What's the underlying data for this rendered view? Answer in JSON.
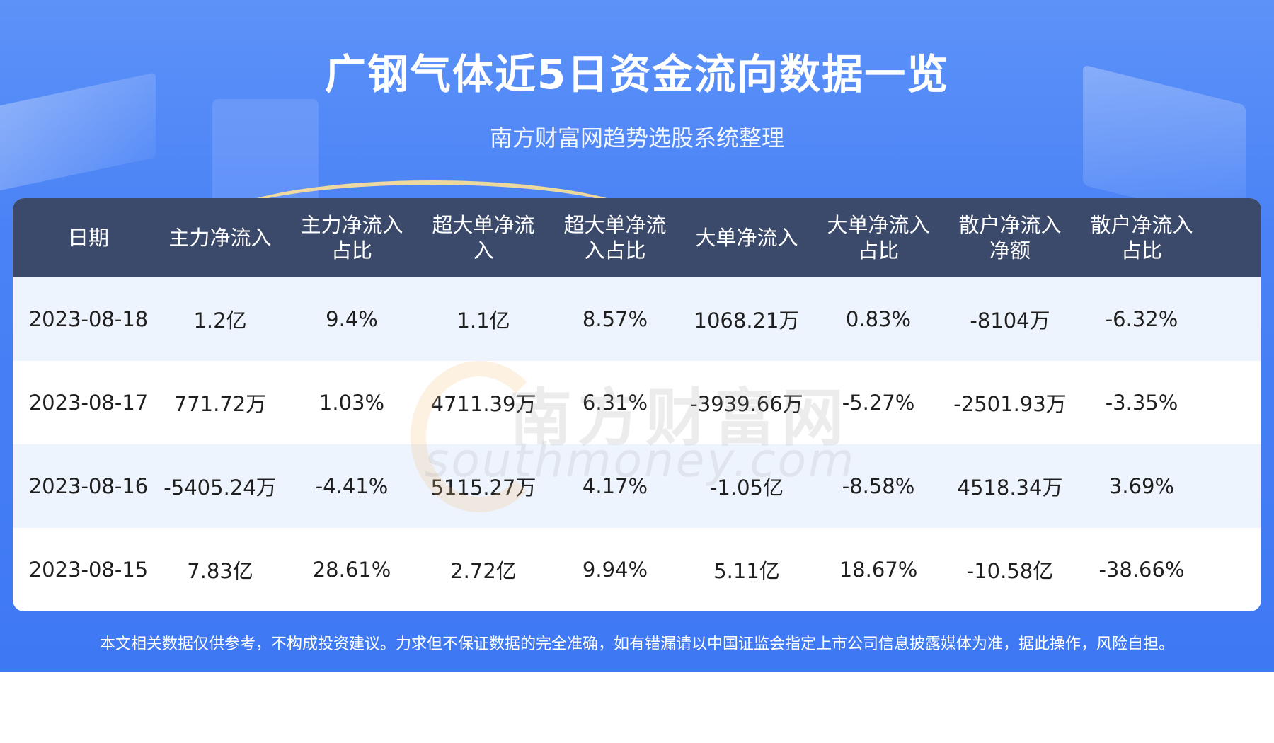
{
  "header": {
    "title": "广钢气体近5日资金流向数据一览",
    "subtitle": "南方财富网趋势选股系统整理"
  },
  "table": {
    "columns": [
      "日期",
      "主力净流入",
      "主力净流入\n占比",
      "超大单净流\n入",
      "超大单净流\n入占比",
      "大单净流入",
      "大单净流入\n占比",
      "散户净流入\n净额",
      "散户净流入\n占比"
    ],
    "rows": [
      [
        "2023-08-18",
        "1.2亿",
        "9.4%",
        "1.1亿",
        "8.57%",
        "1068.21万",
        "0.83%",
        "-8104万",
        "-6.32%"
      ],
      [
        "2023-08-17",
        "771.72万",
        "1.03%",
        "4711.39万",
        "6.31%",
        "-3939.66万",
        "-5.27%",
        "-2501.93万",
        "-3.35%"
      ],
      [
        "2023-08-16",
        "-5405.24万",
        "-4.41%",
        "5115.27万",
        "4.17%",
        "-1.05亿",
        "-8.58%",
        "4518.34万",
        "3.69%"
      ],
      [
        "2023-08-15",
        "7.83亿",
        "28.61%",
        "2.72亿",
        "9.94%",
        "5.11亿",
        "18.67%",
        "-10.58亿",
        "-38.66%"
      ]
    ]
  },
  "watermark": {
    "cn": "南方财富网",
    "en": "southmoney.com"
  },
  "footer": {
    "disclaimer": "本文相关数据仅供参考，不构成投资建议。力求但不保证数据的完全准确，如有错漏请以中国证监会指定上市公司信息披露媒体为准，据此操作，风险自担。"
  },
  "colors": {
    "banner": "#4a82f6",
    "table_header": "#3b4a6b",
    "row_alt": "#eef4fe"
  }
}
